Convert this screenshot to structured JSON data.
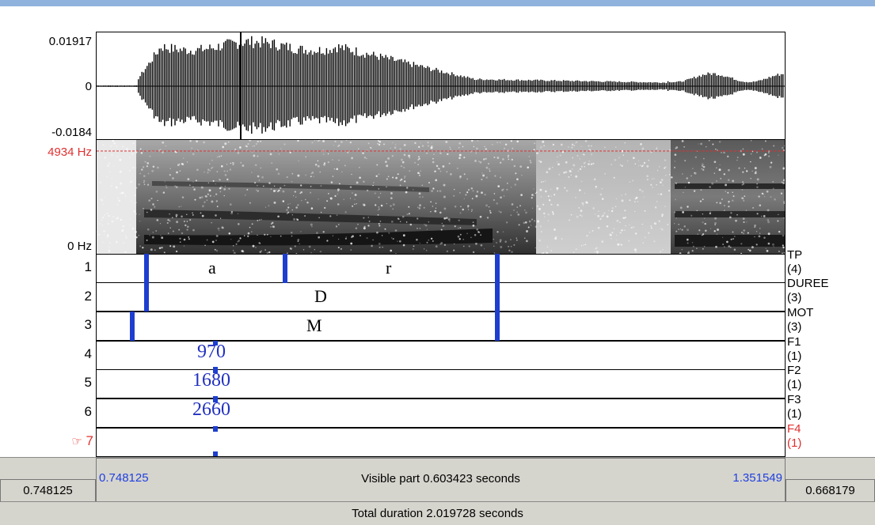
{
  "waveform": {
    "max_label": "0.01917",
    "zero_label": "0",
    "min_label": "-0.0184"
  },
  "spectrogram": {
    "top_label": "4934 Hz",
    "bottom_label": "0 Hz"
  },
  "tiers": [
    {
      "number": "1",
      "name": "TP\n(4)",
      "segments": [
        "a",
        "r"
      ]
    },
    {
      "number": "2",
      "name": "DUREE\n(3)",
      "segments": [
        "D"
      ]
    },
    {
      "number": "3",
      "name": "MOT\n(3)",
      "segments": [
        "M"
      ]
    },
    {
      "number": "4",
      "name": "F1\n(1)",
      "points": [
        "970"
      ]
    },
    {
      "number": "5",
      "name": "F2\n(1)",
      "points": [
        "1680"
      ]
    },
    {
      "number": "6",
      "name": "F3\n(1)",
      "points": [
        "2660"
      ]
    },
    {
      "number": "7",
      "name": "F4\n(1)",
      "points": [],
      "selected": true,
      "pointer": "☞"
    }
  ],
  "view": {
    "left_time": "0.748125",
    "visible_left": "0.748125",
    "visible_label": "Visible part 0.603423 seconds",
    "visible_right": "1.351549",
    "right_time": "0.668179",
    "total_label": "Total duration 2.019728 seconds"
  },
  "colors": {
    "boundary": "#1e3ed0",
    "selected_tier": "#e03030",
    "time_blue": "#2040e0",
    "bar_bg": "#d6d5cd"
  }
}
